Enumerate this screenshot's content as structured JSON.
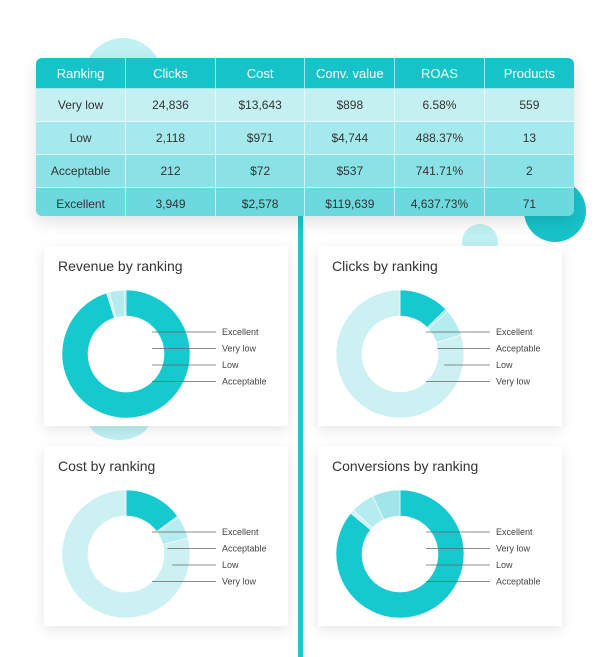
{
  "table": {
    "headers": [
      "Ranking",
      "Clicks",
      "Cost",
      "Conv. value",
      "ROAS",
      "Products"
    ],
    "rows": [
      [
        "Very low",
        "24,836",
        "$13,643",
        "$898",
        "6.58%",
        "559"
      ],
      [
        "Low",
        "2,118",
        "$971",
        "$4,744",
        "488.37%",
        "13"
      ],
      [
        "Acceptable",
        "212",
        "$72",
        "$537",
        "741.71%",
        "2"
      ],
      [
        "Excellent",
        "3,949",
        "$2,578",
        "$119,639",
        "4,637.73%",
        "71"
      ]
    ]
  },
  "colors": {
    "Excellent": "#16c9cf",
    "Very low": "#cdf1f3",
    "Low": "#b4ecef",
    "Acceptable": "#9fe5ea"
  },
  "chart_data": [
    {
      "type": "pie",
      "title": "Revenue by ranking",
      "slices": [
        {
          "label": "Excellent",
          "value": 119639
        },
        {
          "label": "Very low",
          "value": 898
        },
        {
          "label": "Low",
          "value": 4744
        },
        {
          "label": "Acceptable",
          "value": 537
        }
      ]
    },
    {
      "type": "pie",
      "title": "Clicks by ranking",
      "slices": [
        {
          "label": "Excellent",
          "value": 3949
        },
        {
          "label": "Acceptable",
          "value": 212
        },
        {
          "label": "Low",
          "value": 2118
        },
        {
          "label": "Very low",
          "value": 24836
        }
      ]
    },
    {
      "type": "pie",
      "title": "Cost by ranking",
      "slices": [
        {
          "label": "Excellent",
          "value": 2578
        },
        {
          "label": "Acceptable",
          "value": 72
        },
        {
          "label": "Low",
          "value": 971
        },
        {
          "label": "Very low",
          "value": 13643
        }
      ]
    },
    {
      "type": "pie",
      "title": "Conversions by ranking",
      "slices": [
        {
          "label": "Excellent",
          "value": 86
        },
        {
          "label": "Very low",
          "value": 1
        },
        {
          "label": "Low",
          "value": 6
        },
        {
          "label": "Acceptable",
          "value": 7
        }
      ]
    }
  ]
}
